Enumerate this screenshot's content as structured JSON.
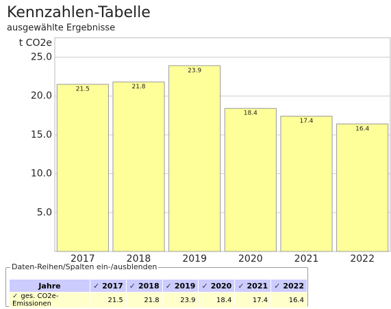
{
  "chart_data": {
    "type": "bar",
    "title": "Kennzahlen-Tabelle",
    "subtitle": "ausgewählte Ergebnisse",
    "y_label": "t CO2e",
    "categories": [
      "2017",
      "2018",
      "2019",
      "2020",
      "2021",
      "2022"
    ],
    "values": [
      21.5,
      21.8,
      23.9,
      18.4,
      17.4,
      16.4
    ],
    "color": "#ffff99",
    "ylim": [
      0,
      27.5
    ],
    "yticks": [
      {
        "value": 5,
        "label": "5.0"
      },
      {
        "value": 10,
        "label": "10.0"
      },
      {
        "value": 15,
        "label": "15.0"
      },
      {
        "value": 20,
        "label": "20.0"
      },
      {
        "value": 25,
        "label": "25.0"
      }
    ],
    "grid": true
  },
  "table": {
    "legend": "Daten-Reihen/Spalten ein-/ausblenden",
    "header": "Jahre",
    "row_label": "ges. CO2e-Emissionen"
  }
}
